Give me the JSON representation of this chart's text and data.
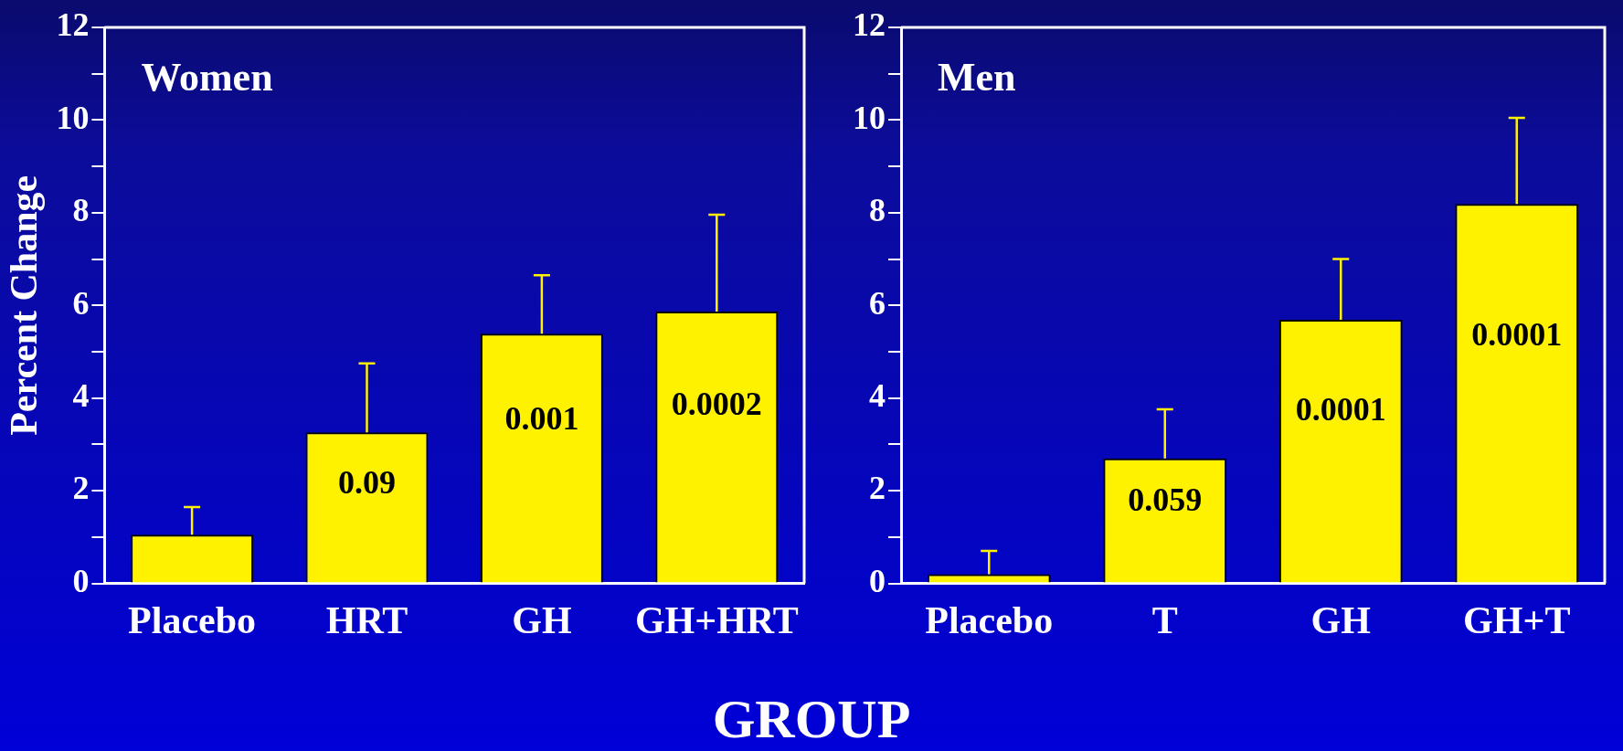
{
  "chart_data": [
    {
      "type": "bar",
      "title": "Women",
      "ylabel": "Percent Change",
      "xlabel": "GROUP",
      "categories": [
        "Placebo",
        "HRT",
        "GH",
        "GH+HRT"
      ],
      "values": [
        1.05,
        3.26,
        5.39,
        5.87
      ],
      "color": "#fff200",
      "errors": [
        [
          1.05,
          1.65
        ],
        [
          3.26,
          4.75
        ],
        [
          5.39,
          6.65
        ],
        [
          5.87,
          7.96
        ]
      ],
      "ylim": [
        0,
        12
      ],
      "yticks": [
        0,
        {
          "value": 1,
          "label": null
        },
        2,
        {
          "value": 3,
          "label": null
        },
        4,
        {
          "value": 5,
          "label": null
        },
        6,
        {
          "value": 7,
          "label": null
        },
        8,
        {
          "value": 9,
          "label": null
        },
        10,
        {
          "value": 11,
          "label": null
        },
        12
      ],
      "grid": false,
      "legend": false,
      "annotations": [
        "0.09",
        "0.001",
        "0.0002"
      ]
    },
    {
      "type": "bar",
      "title": "Men",
      "categories": [
        "Placebo",
        "T",
        "GH",
        "GH+T"
      ],
      "values": [
        0.2,
        2.7,
        5.69,
        8.19
      ],
      "color": "#fff200",
      "errors": [
        [
          0.2,
          0.7
        ],
        [
          2.7,
          3.76
        ],
        [
          5.69,
          7.0
        ],
        [
          8.19,
          10.05
        ]
      ],
      "ylim": [
        0,
        12
      ],
      "yticks": [
        0,
        {
          "value": 1,
          "label": null
        },
        2,
        {
          "value": 3,
          "label": null
        },
        4,
        {
          "value": 5,
          "label": null
        },
        6,
        {
          "value": 7,
          "label": null
        },
        8,
        {
          "value": 9,
          "label": null
        },
        10,
        {
          "value": 11,
          "label": null
        },
        12
      ],
      "grid": false,
      "legend": false,
      "annotations": [
        "0.059",
        "0.0001",
        "0.0001"
      ]
    }
  ]
}
